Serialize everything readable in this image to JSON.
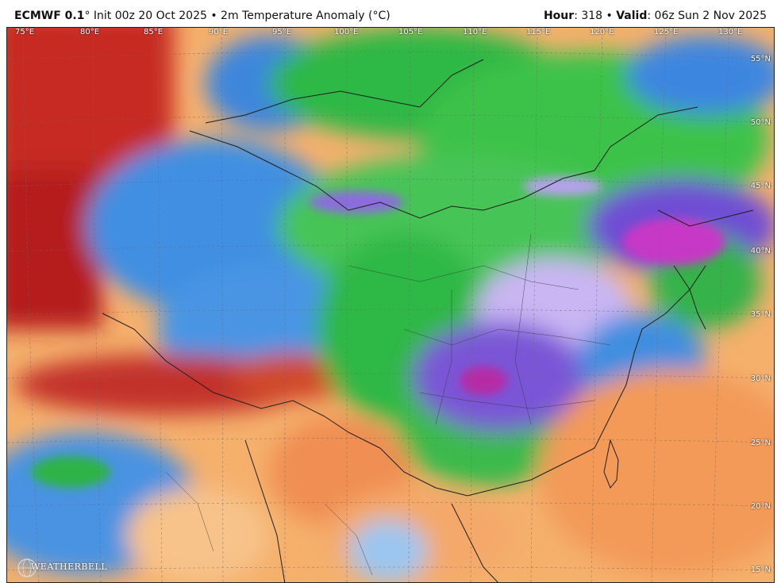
{
  "header": {
    "model": "ECMWF 0.1",
    "deg": "°",
    "subtitle": " Init 00z 20 Oct 2025 • 2m Temperature Anomaly (°C)",
    "hour_label": "Hour",
    "hour_value": ": 318 • ",
    "valid_label": "Valid",
    "valid_value": ": 06z Sun 2 Nov 2025"
  },
  "longitude_labels": [
    "75°E",
    "80°E",
    "85°E",
    "90°E",
    "95°E",
    "100°E",
    "105°E",
    "110°E",
    "115°E",
    "120°E",
    "125°E",
    "130°E"
  ],
  "latitude_labels": [
    "55°N",
    "50°N",
    "45°N",
    "40°N",
    "35°N",
    "30°N",
    "25°N",
    "20°N",
    "15°N"
  ],
  "logo_text": "WEATHERBELL",
  "colors": {
    "very_warm": "#b81e1e",
    "warm": "#f29a4a",
    "mild_warm": "#f7c38a",
    "cool_blue": "#3d8be0",
    "light_blue": "#9cc6f0",
    "green": "#2fbf3e",
    "purple": "#7a4fd8",
    "magenta": "#d32fd0",
    "borders": "#222222"
  }
}
